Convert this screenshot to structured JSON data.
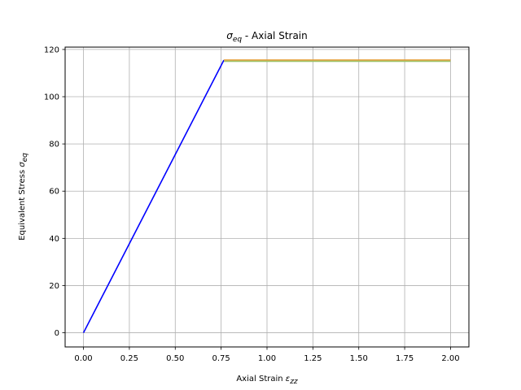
{
  "chart_data": {
    "type": "line",
    "title": {
      "symbol": "σ",
      "subscript": "eq",
      "rest": " - Axial Strain"
    },
    "xlabel": {
      "text": "Axial Strain ",
      "symbol": "ε",
      "subscript": "zz"
    },
    "ylabel": {
      "text": "Equivalent Stress ",
      "symbol": "σ",
      "subscript": "eq"
    },
    "xlim": [
      -0.1,
      2.1
    ],
    "ylim": [
      -6,
      121
    ],
    "xticks": [
      0.0,
      0.25,
      0.5,
      0.75,
      1.0,
      1.25,
      1.5,
      1.75,
      2.0
    ],
    "xtick_labels": [
      "0.00",
      "0.25",
      "0.50",
      "0.75",
      "1.00",
      "1.25",
      "1.50",
      "1.75",
      "2.00"
    ],
    "yticks": [
      0,
      20,
      40,
      60,
      80,
      100,
      120
    ],
    "ytick_labels": [
      "0",
      "20",
      "40",
      "60",
      "80",
      "100",
      "120"
    ],
    "grid": true,
    "series": [
      {
        "color": "#0000ff",
        "x": [
          0.0,
          0.765
        ],
        "y": [
          0,
          115.5
        ]
      },
      {
        "color": "#e69b30",
        "x": [
          0.765,
          2.0
        ],
        "y": [
          115.5,
          115.5
        ]
      },
      {
        "color": "#9ec36b",
        "x": [
          0.765,
          2.0
        ],
        "y": [
          115.0,
          115.0
        ]
      }
    ]
  }
}
